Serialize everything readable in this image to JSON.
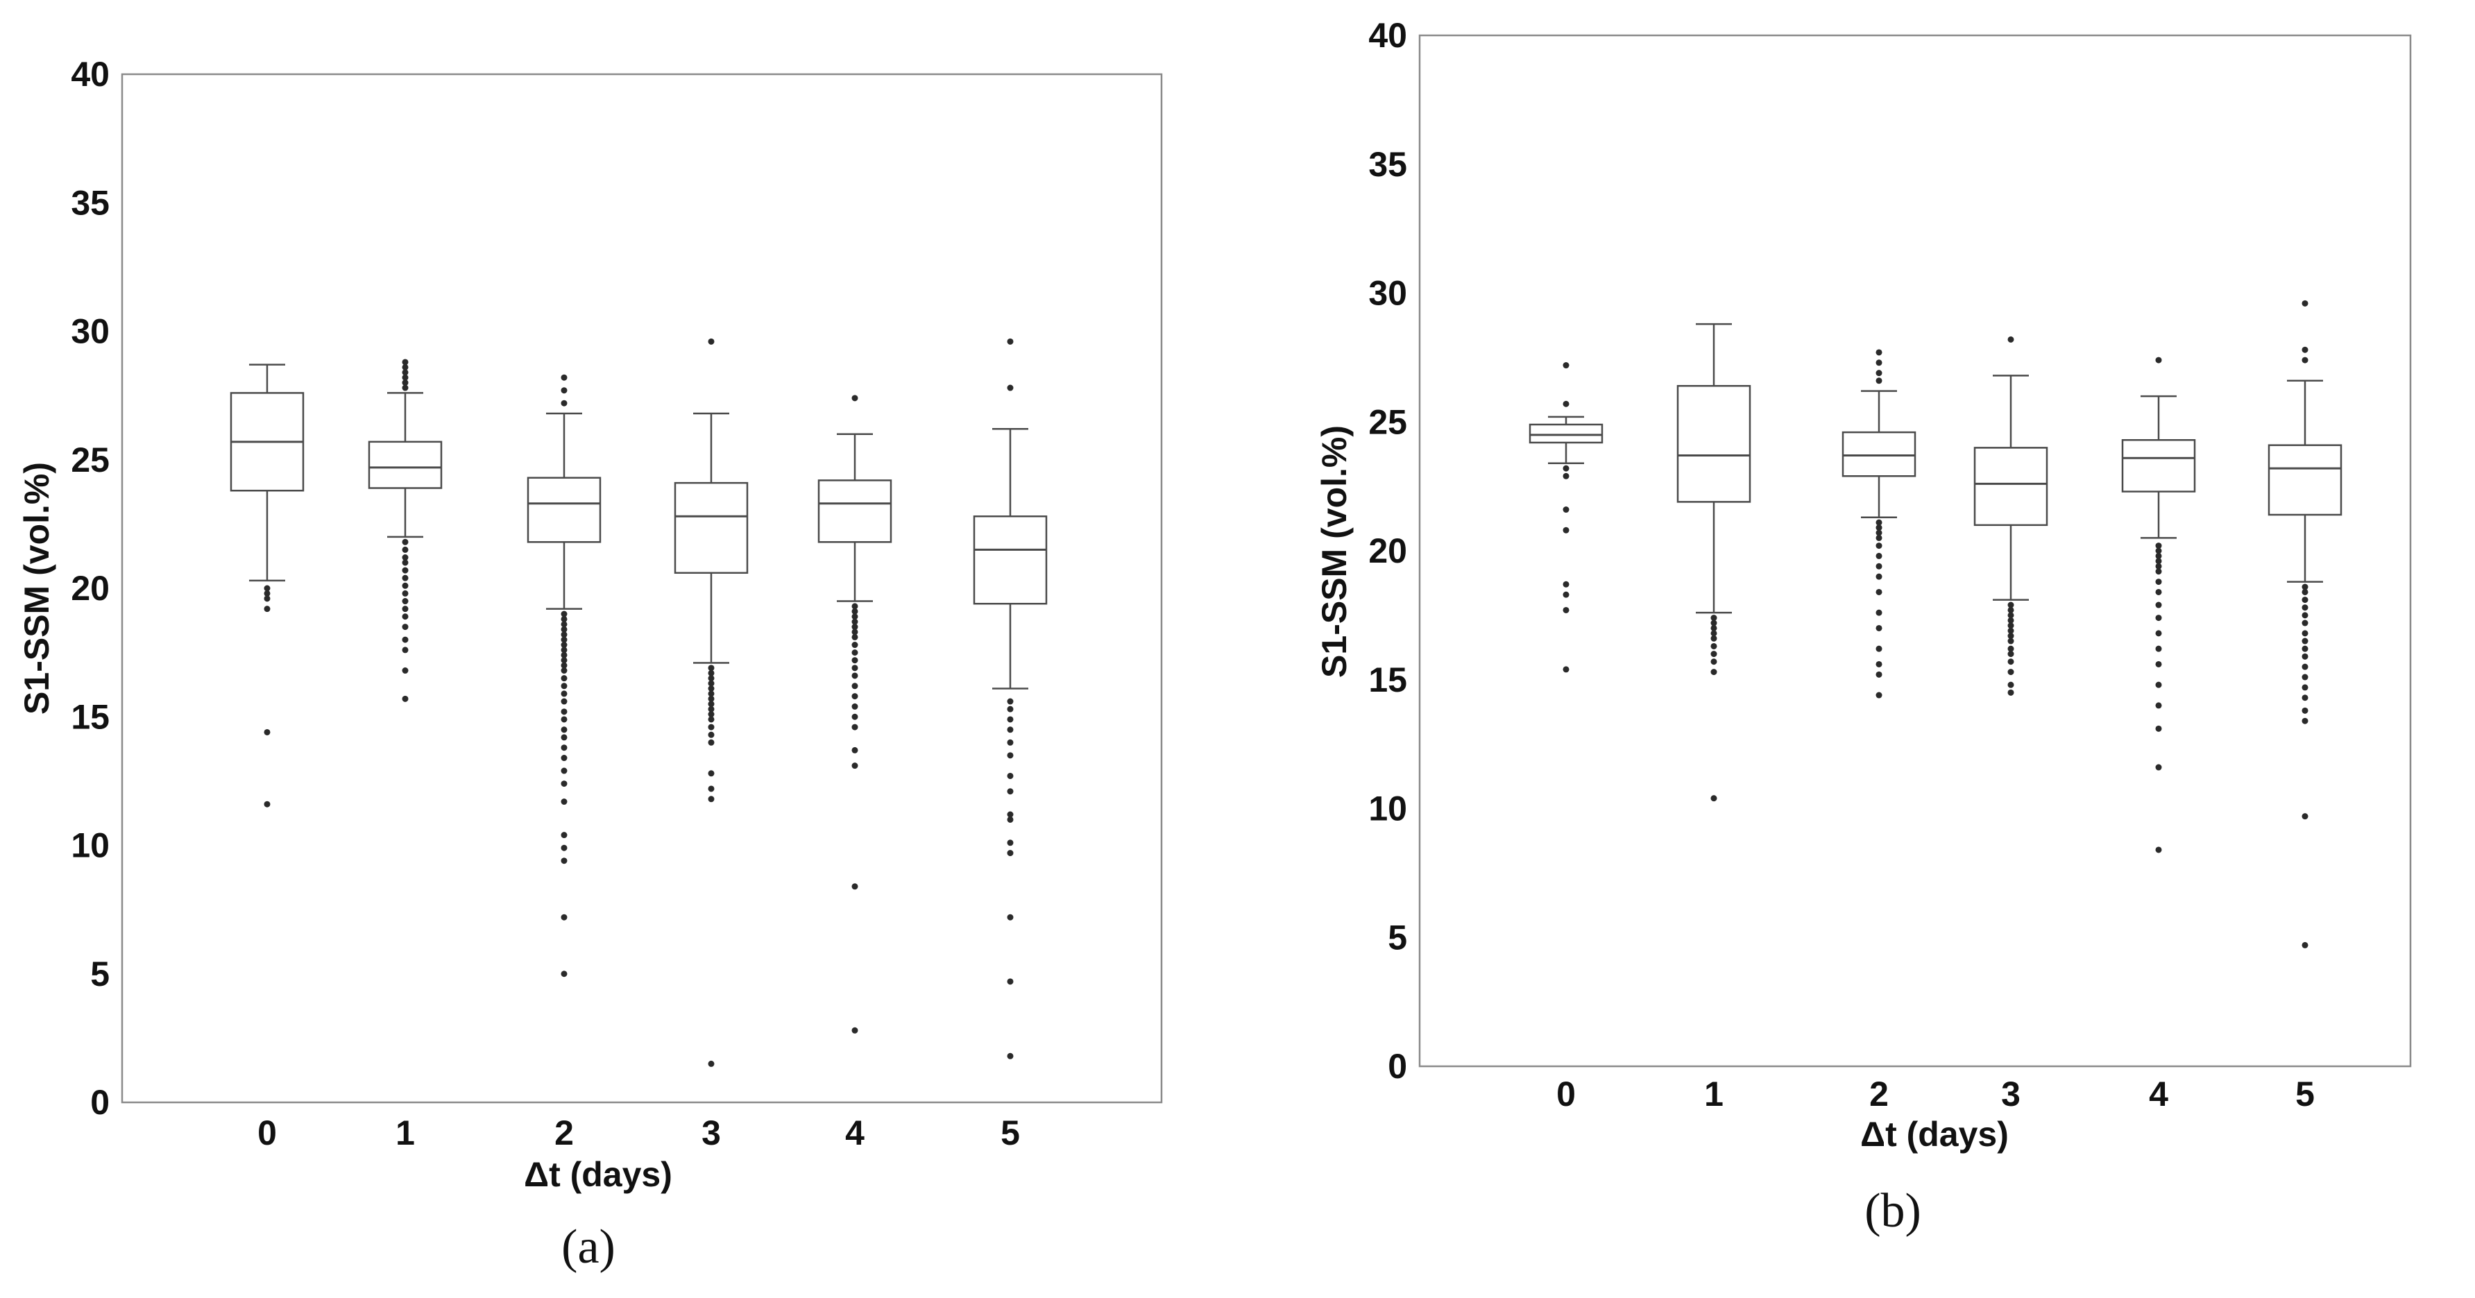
{
  "chart_data": [
    {
      "type": "box",
      "panel_label": "(a)",
      "xlabel": "Δt (days)",
      "ylabel": "S1-SSM (vol.%)",
      "ylim": [
        0,
        40
      ],
      "yticks": [
        "0",
        "5",
        "10",
        "15",
        "20",
        "25",
        "30",
        "35",
        "40"
      ],
      "categories": [
        "0",
        "1",
        "2",
        "3",
        "4",
        "5"
      ],
      "boxes": [
        {
          "min": 20.3,
          "q1": 23.8,
          "median": 25.7,
          "q3": 27.6,
          "max": 28.7,
          "outliers": [
            20.0,
            19.8,
            19.6,
            19.2,
            14.4,
            11.6
          ]
        },
        {
          "min": 22.0,
          "q1": 23.9,
          "median": 24.7,
          "q3": 25.7,
          "max": 27.6,
          "outliers": [
            27.8,
            28.0,
            28.2,
            28.4,
            28.6,
            28.8,
            21.8,
            21.5,
            21.2,
            21.0,
            20.7,
            20.4,
            20.1,
            19.8,
            19.5,
            19.2,
            18.9,
            18.5,
            18.0,
            17.6,
            16.8,
            15.7
          ]
        },
        {
          "min": 19.2,
          "q1": 21.8,
          "median": 23.3,
          "q3": 24.3,
          "max": 26.8,
          "outliers": [
            27.2,
            27.7,
            28.2,
            19.0,
            18.8,
            18.6,
            18.4,
            18.2,
            18.0,
            17.8,
            17.6,
            17.4,
            17.2,
            17.0,
            16.8,
            16.5,
            16.2,
            15.9,
            15.6,
            15.2,
            14.9,
            14.5,
            14.2,
            13.8,
            13.4,
            12.9,
            12.4,
            11.7,
            10.4,
            9.9,
            9.4,
            7.2,
            5.0
          ]
        },
        {
          "min": 17.1,
          "q1": 20.6,
          "median": 22.8,
          "q3": 24.1,
          "max": 26.8,
          "outliers": [
            29.6,
            16.9,
            16.7,
            16.5,
            16.3,
            16.1,
            15.9,
            15.7,
            15.5,
            15.3,
            15.1,
            14.9,
            14.6,
            14.3,
            14.0,
            12.8,
            12.2,
            11.8,
            1.5
          ]
        },
        {
          "min": 19.5,
          "q1": 21.8,
          "median": 23.3,
          "q3": 24.2,
          "max": 26.0,
          "outliers": [
            27.4,
            19.3,
            19.1,
            18.9,
            18.7,
            18.5,
            18.3,
            18.1,
            17.8,
            17.5,
            17.2,
            16.9,
            16.6,
            16.2,
            15.8,
            15.4,
            15.0,
            14.6,
            13.7,
            13.1,
            8.4,
            2.8
          ]
        },
        {
          "min": 16.1,
          "q1": 19.4,
          "median": 21.5,
          "q3": 22.8,
          "max": 26.2,
          "outliers": [
            27.8,
            29.6,
            15.6,
            15.3,
            14.9,
            14.5,
            14.0,
            13.5,
            12.7,
            12.1,
            11.2,
            11.0,
            10.1,
            9.7,
            7.2,
            4.7,
            1.8
          ]
        }
      ]
    },
    {
      "type": "box",
      "panel_label": "(b)",
      "xlabel": "Δt (days)",
      "ylabel": "S1-SSM (vol.%)",
      "ylim": [
        0,
        40
      ],
      "yticks": [
        "0",
        "5",
        "10",
        "15",
        "20",
        "25",
        "30",
        "35",
        "40"
      ],
      "categories": [
        "0",
        "1",
        "2",
        "3",
        "4",
        "5"
      ],
      "boxes": [
        {
          "min": 23.4,
          "q1": 24.2,
          "median": 24.5,
          "q3": 24.9,
          "max": 25.2,
          "outliers": [
            25.7,
            27.2,
            23.2,
            22.9,
            21.6,
            20.8,
            18.7,
            18.3,
            17.7,
            15.4
          ]
        },
        {
          "min": 17.6,
          "q1": 21.9,
          "median": 23.7,
          "q3": 26.4,
          "max": 28.8,
          "outliers": [
            17.4,
            17.2,
            17.0,
            16.8,
            16.6,
            16.3,
            16.0,
            15.7,
            15.3,
            10.4
          ]
        },
        {
          "min": 21.3,
          "q1": 22.9,
          "median": 23.7,
          "q3": 24.6,
          "max": 26.2,
          "outliers": [
            26.6,
            26.9,
            27.3,
            27.7,
            21.1,
            20.9,
            20.7,
            20.5,
            20.2,
            19.8,
            19.4,
            19.0,
            18.4,
            17.6,
            17.0,
            16.2,
            15.6,
            15.2,
            14.4
          ]
        },
        {
          "min": 18.1,
          "q1": 21.0,
          "median": 22.6,
          "q3": 24.0,
          "max": 26.8,
          "outliers": [
            28.2,
            17.9,
            17.7,
            17.5,
            17.3,
            17.1,
            16.9,
            16.7,
            16.5,
            16.2,
            16.0,
            15.7,
            15.3,
            14.8,
            14.5
          ]
        },
        {
          "min": 20.5,
          "q1": 22.3,
          "median": 23.6,
          "q3": 24.3,
          "max": 26.0,
          "outliers": [
            27.4,
            20.2,
            20.0,
            19.8,
            19.6,
            19.4,
            19.2,
            18.8,
            18.4,
            17.9,
            17.4,
            16.8,
            16.2,
            15.6,
            14.8,
            14.0,
            13.1,
            11.6,
            8.4
          ]
        },
        {
          "min": 18.8,
          "q1": 21.4,
          "median": 23.2,
          "q3": 24.1,
          "max": 26.6,
          "outliers": [
            27.4,
            27.8,
            29.6,
            18.6,
            18.4,
            18.1,
            17.8,
            17.5,
            17.2,
            16.8,
            16.5,
            16.2,
            15.9,
            15.5,
            15.1,
            14.7,
            14.3,
            13.8,
            13.4,
            9.7,
            4.7
          ]
        }
      ]
    }
  ]
}
